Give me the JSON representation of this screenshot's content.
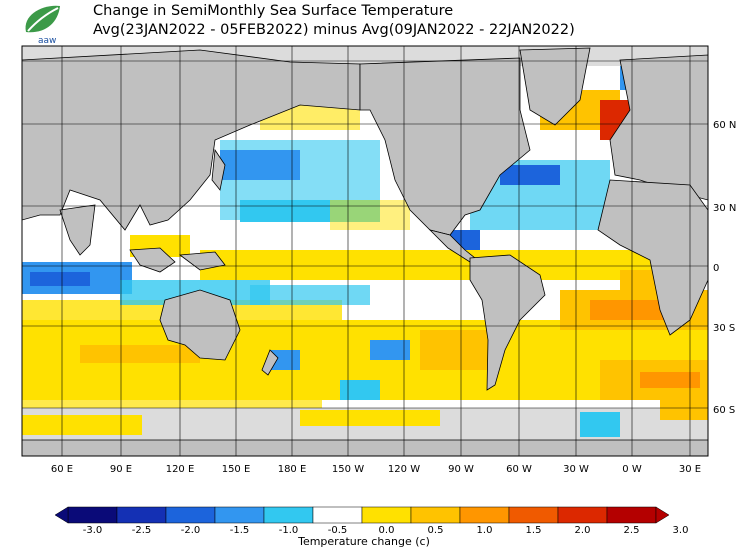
{
  "header": {
    "logo_text": "aaw",
    "title_line1": "Change in SemiMonthly Sea Surface Temperature",
    "title_line2": "Avg(23JAN2022 - 05FEB2022) minus Avg(09JAN2022 - 22JAN2022)"
  },
  "map": {
    "lat_labels": [
      "60 N",
      "30 N",
      "0",
      "30 S",
      "60 S"
    ],
    "lon_labels": [
      "60 E",
      "90 E",
      "120 E",
      "150 E",
      "180 E",
      "150 W",
      "120 W",
      "90 W",
      "60 W",
      "30 W",
      "0 W",
      "30 E"
    ],
    "colors": {
      "land": "#c0c0c0",
      "ice": "#dcdcdc",
      "grid": "#000000"
    }
  },
  "colorbar": {
    "title": "Temperature change  (c)",
    "labels": [
      "-3.0",
      "-2.5",
      "-2.0",
      "-1.5",
      "-1.0",
      "-0.5",
      "0.0",
      "0.5",
      "1.0",
      "1.5",
      "2.0",
      "2.5",
      "3.0"
    ],
    "colors": [
      "#0a0a78",
      "#1430b4",
      "#1c64dc",
      "#3296f0",
      "#32c8f0",
      "#ffffff",
      "#ffe100",
      "#ffc300",
      "#ff9600",
      "#f05a00",
      "#dc2800",
      "#b40000"
    ]
  }
}
